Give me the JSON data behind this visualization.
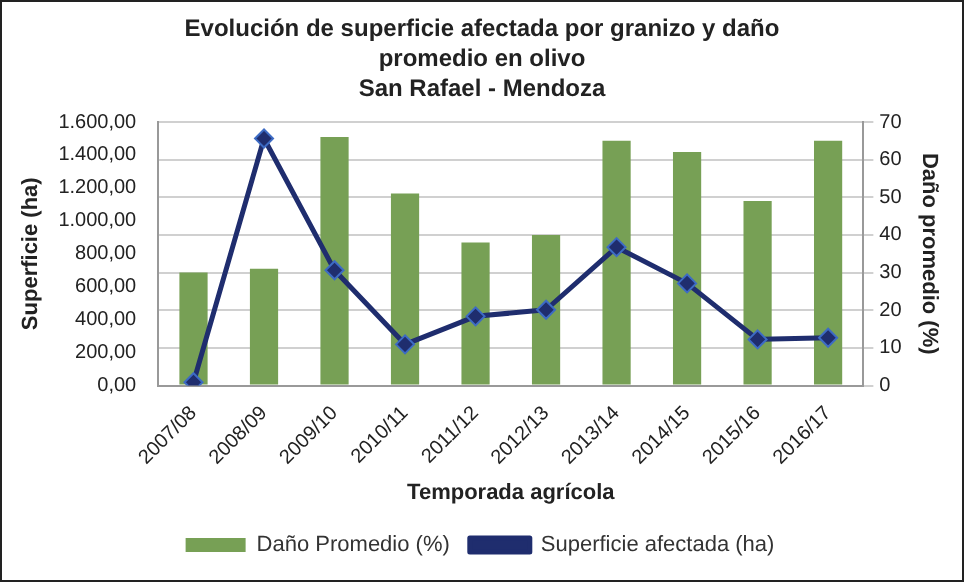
{
  "chart_data": {
    "type": "bar",
    "title": "Evolución de superficie afectada por granizo y daño promedio en olivo",
    "subtitle": "San Rafael - Mendoza",
    "xlabel": "Temporada agrícola",
    "ylabel": "Superficie (ha)",
    "y2label": "Daño promedio (%)",
    "categories": [
      "2007/08",
      "2008/09",
      "2009/10",
      "2010/11",
      "2011/12",
      "2012/13",
      "2013/14",
      "2014/15",
      "2015/16",
      "2016/17"
    ],
    "series": [
      {
        "name": "Daño Promedio (%)",
        "axis": "y2",
        "color": "#77a055",
        "values": [
          30,
          31,
          66,
          51,
          38,
          40,
          65,
          62,
          49,
          65
        ]
      },
      {
        "name": "Superficie afectada (ha)",
        "type": "line",
        "color": "#1f2d6e",
        "values": [
          20,
          1500,
          700,
          250,
          420,
          460,
          840,
          620,
          280,
          290
        ]
      }
    ],
    "ylim": [
      0,
      1600
    ],
    "yticks": [
      {
        "value": 0,
        "label": "0,00"
      },
      {
        "value": 200,
        "label": "200,00"
      },
      {
        "value": 400,
        "label": "400,00"
      },
      {
        "value": 600,
        "label": "600,00"
      },
      {
        "value": 800,
        "label": "800,00"
      },
      {
        "value": 1000,
        "label": "1.000,00"
      },
      {
        "value": 1200,
        "label": "1.200,00"
      },
      {
        "value": 1400,
        "label": "1.400,00"
      },
      {
        "value": 1600,
        "label": "1.600,00"
      }
    ],
    "y2lim": [
      0,
      70
    ],
    "y2ticks": [
      0,
      10,
      20,
      30,
      40,
      50,
      60,
      70
    ],
    "grid": "y",
    "legend": "bottom",
    "marker": "diamond",
    "line_style": "solid"
  }
}
